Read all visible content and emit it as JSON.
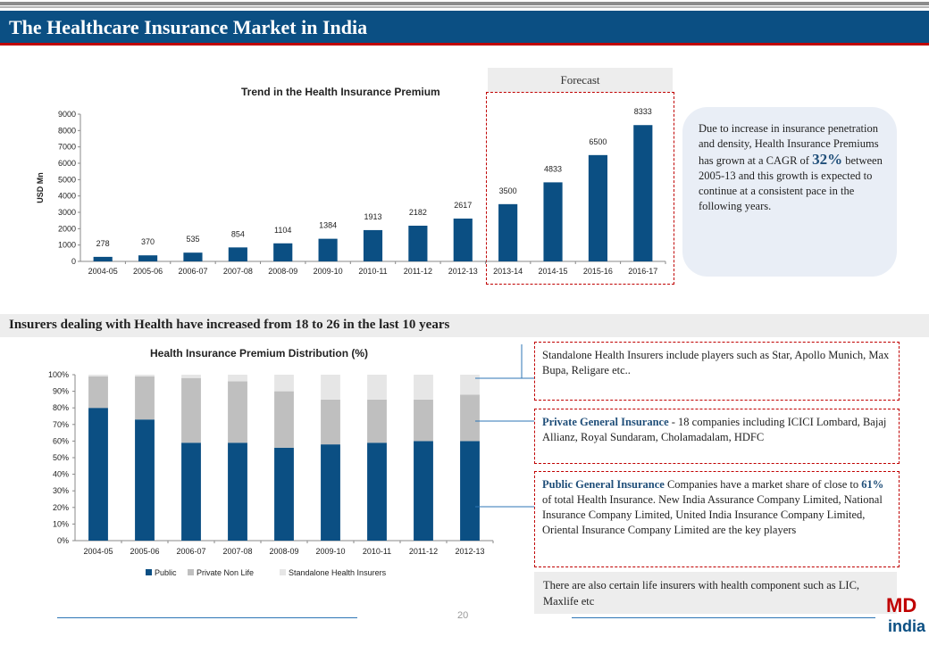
{
  "page": {
    "title": "The Healthcare Insurance Market in India",
    "page_number": "20",
    "forecast_label": "Forecast",
    "section_heading": "Insurers dealing with Health have increased from 18 to 26 in the last 10 years",
    "logo_text_top": "MD",
    "logo_text_bottom": "india"
  },
  "bubble": {
    "text_before": "Due to increase in insurance penetration and density, Health Insurance Premiums has grown at a  CAGR of ",
    "highlight": "32%",
    "text_after": " between 2005-13 and this growth is expected to continue at a consistent pace in the following years."
  },
  "info_boxes": {
    "standalone": "Standalone Health Insurers include players such as Star, Apollo Munich, Max Bupa, Religare etc..",
    "private_title": "Private General Insurance",
    "private_text": " - 18 companies including ICICI Lombard, Bajaj Allianz, Royal Sundaram, Cholamadalam, HDFC",
    "public_title": "Public General Insurance",
    "public_text_1": " Companies have a market share of  close to ",
    "public_share": "61%",
    "public_text_2": " of  total Health Insurance. New India Assurance Company Limited, National Insurance Company Limited, United India Insurance Company Limited, Oriental Insurance Company Limited are the key players",
    "life_note": "There are also certain life insurers with health component such as LIC, Maxlife etc"
  },
  "colors": {
    "title_bar": "#0b4f83",
    "accent_red": "#c00000",
    "public": "#0b4f83",
    "private_non_life": "#bfbfbf",
    "standalone": "#e6e6e6",
    "premium_bar": "#0b4f83"
  },
  "chart_data": [
    {
      "type": "bar",
      "title": "Trend in the Health Insurance Premium",
      "xlabel": "",
      "ylabel": "USD Mn",
      "ylim": [
        0,
        9000
      ],
      "yticks": [
        0,
        1000,
        2000,
        3000,
        4000,
        5000,
        6000,
        7000,
        8000,
        9000
      ],
      "categories": [
        "2004-05",
        "2005-06",
        "2006-07",
        "2007-08",
        "2008-09",
        "2009-10",
        "2010-11",
        "2011-12",
        "2012-13",
        "2013-14",
        "2014-15",
        "2015-16",
        "2016-17"
      ],
      "values": [
        278,
        370,
        535,
        854,
        1104,
        1384,
        1913,
        2182,
        2617,
        3500,
        4833,
        6500,
        8333
      ],
      "grid": false,
      "legend": "none"
    },
    {
      "type": "bar",
      "stacked": true,
      "title": "Health Insurance Premium Distribution (%)",
      "xlabel": "",
      "ylabel": "",
      "ylim": [
        0,
        100
      ],
      "yticks": [
        "0%",
        "10%",
        "20%",
        "30%",
        "40%",
        "50%",
        "60%",
        "70%",
        "80%",
        "90%",
        "100%"
      ],
      "categories": [
        "2004-05",
        "2005-06",
        "2006-07",
        "2007-08",
        "2008-09",
        "2009-10",
        "2010-11",
        "2011-12",
        "2012-13"
      ],
      "series": [
        {
          "name": "Public",
          "values": [
            80,
            73,
            59,
            59,
            56,
            58,
            59,
            60,
            60
          ]
        },
        {
          "name": "Private Non Life",
          "values": [
            19,
            26,
            39,
            37,
            34,
            27,
            26,
            25,
            28
          ]
        },
        {
          "name": "Standalone Health Insurers",
          "values": [
            1,
            1,
            2,
            4,
            10,
            15,
            15,
            15,
            12
          ]
        }
      ],
      "grid": false,
      "legend": "bottom"
    }
  ]
}
